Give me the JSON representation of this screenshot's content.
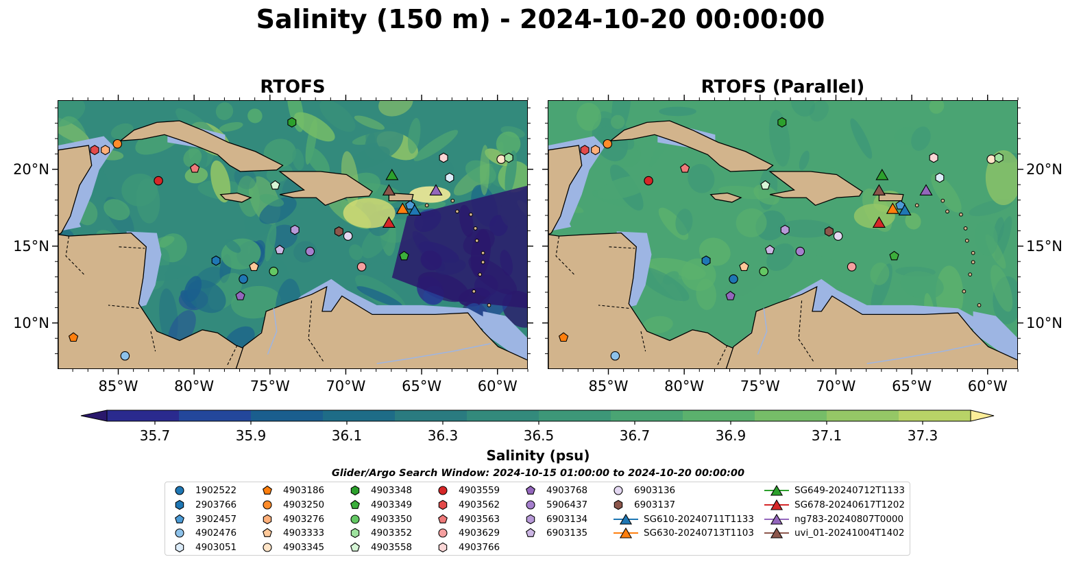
{
  "title": "Salinity (150 m) - 2024-10-20 00:00:00",
  "colors": {
    "land": "#d2b48c",
    "shelf": "#9db5e3",
    "deep": "#2b1f6e",
    "colormap": [
      "#2a186c",
      "#2a2a8e",
      "#23479b",
      "#1a5e8e",
      "#1e6c87",
      "#2a7b80",
      "#338a7c",
      "#3d9778",
      "#4aa473",
      "#5bb16d",
      "#76bd68",
      "#95c766",
      "#b8d367",
      "#dadf74",
      "#fdee99"
    ]
  },
  "chart_data": [
    {
      "type": "heatmap",
      "title": "RTOFS",
      "variable": "Salinity (psu)",
      "depth": "150 m",
      "lon_ticks": [
        "85°W",
        "80°W",
        "75°W",
        "70°W",
        "65°W",
        "60°W"
      ],
      "lat_ticks": [
        "20°N",
        "15°N",
        "10°N"
      ],
      "lon_range": [
        -89,
        -58
      ],
      "lat_range": [
        7,
        24.5
      ]
    },
    {
      "type": "heatmap",
      "title": "RTOFS (Parallel)",
      "variable": "Salinity (psu)",
      "depth": "150 m",
      "lon_ticks": [
        "85°W",
        "80°W",
        "75°W",
        "70°W",
        "65°W",
        "60°W"
      ],
      "lat_ticks": [
        "20°N",
        "15°N",
        "10°N"
      ],
      "lon_range": [
        -89,
        -58
      ],
      "lat_range": [
        7,
        24.5
      ]
    }
  ],
  "colorbar": {
    "label": "Salinity (psu)",
    "min": 35.6,
    "max": 37.4,
    "ticks": [
      "35.7",
      "35.9",
      "36.1",
      "36.3",
      "36.5",
      "36.7",
      "36.9",
      "37.1",
      "37.3"
    ]
  },
  "search_window": "Glider/Argo Search Window: 2024-10-15 01:00:00 to 2024-10-20 00:00:00",
  "observations": [
    {
      "name": "1902522",
      "marker": "circle",
      "color": "#1f77b4",
      "lon": -76.8,
      "lat": 12.9
    },
    {
      "name": "2903766",
      "marker": "hexagon",
      "color": "#1f77b4",
      "lon": -78.6,
      "lat": 14.1
    },
    {
      "name": "3902457",
      "marker": "pentagon",
      "color": "#4c9bd6",
      "lon": -65.8,
      "lat": 17.7
    },
    {
      "name": "4902476",
      "marker": "circle",
      "color": "#8ec2ea",
      "lon": -84.6,
      "lat": 7.9
    },
    {
      "name": "4903051",
      "marker": "hexagon",
      "color": "#dcecf9",
      "lon": -63.2,
      "lat": 19.5
    },
    {
      "name": "4903186",
      "marker": "pentagon",
      "color": "#ff7f0e",
      "lon": -88.0,
      "lat": 9.1
    },
    {
      "name": "4903250",
      "marker": "circle",
      "color": "#ff8c2a",
      "lon": -85.1,
      "lat": 21.7
    },
    {
      "name": "4903276",
      "marker": "hexagon",
      "color": "#ffb07a",
      "lon": -85.9,
      "lat": 21.3
    },
    {
      "name": "4903333",
      "marker": "pentagon",
      "color": "#ffc99a",
      "lon": -76.1,
      "lat": 13.7
    },
    {
      "name": "4903345",
      "marker": "circle",
      "color": "#ffe5c8",
      "lon": -59.8,
      "lat": 20.7
    },
    {
      "name": "4903348",
      "marker": "hexagon",
      "color": "#2ca02c",
      "lon": -73.6,
      "lat": 23.1
    },
    {
      "name": "4903349",
      "marker": "pentagon",
      "color": "#3cae3c",
      "lon": -66.2,
      "lat": 14.4
    },
    {
      "name": "4903350",
      "marker": "circle",
      "color": "#64c864",
      "lon": -74.8,
      "lat": 13.4
    },
    {
      "name": "4903352",
      "marker": "hexagon",
      "color": "#9ee29e",
      "lon": -59.3,
      "lat": 20.8
    },
    {
      "name": "4903558",
      "marker": "pentagon",
      "color": "#d6f5d6",
      "lon": -74.7,
      "lat": 19.0
    },
    {
      "name": "4903559",
      "marker": "circle",
      "color": "#d62728",
      "lon": -82.4,
      "lat": 19.3
    },
    {
      "name": "4903562",
      "marker": "hexagon",
      "color": "#e34a4a",
      "lon": -86.6,
      "lat": 21.3
    },
    {
      "name": "4903563",
      "marker": "pentagon",
      "color": "#ef7a7a",
      "lon": -80.0,
      "lat": 20.1
    },
    {
      "name": "4903629",
      "marker": "circle",
      "color": "#f59f9f",
      "lon": -69.0,
      "lat": 13.7
    },
    {
      "name": "4903766",
      "marker": "hexagon",
      "color": "#fad6d6",
      "lon": -63.6,
      "lat": 20.8
    },
    {
      "name": "4903768",
      "marker": "pentagon",
      "color": "#9467bd",
      "lon": -77.0,
      "lat": 11.8
    },
    {
      "name": "5906437",
      "marker": "circle",
      "color": "#a57fcd",
      "lon": -72.4,
      "lat": 14.7
    },
    {
      "name": "6903134",
      "marker": "hexagon",
      "color": "#b89ad8",
      "lon": -73.4,
      "lat": 16.1
    },
    {
      "name": "6903135",
      "marker": "pentagon",
      "color": "#ccb6e4",
      "lon": -74.4,
      "lat": 14.8
    },
    {
      "name": "6903136",
      "marker": "circle",
      "color": "#e4d8f2",
      "lon": -69.9,
      "lat": 15.7
    },
    {
      "name": "6903137",
      "marker": "hexagon",
      "color": "#8c564b",
      "lon": -70.5,
      "lat": 16.0
    },
    {
      "name": "SG610-20240711T1133",
      "marker": "triangle",
      "color": "#1f77b4",
      "lon": -65.5,
      "lat": 17.4
    },
    {
      "name": "SG630-20240713T1103",
      "marker": "triangle",
      "color": "#ff7f0e",
      "lon": -66.3,
      "lat": 17.5
    },
    {
      "name": "SG649-20240712T1133",
      "marker": "triangle",
      "color": "#2ca02c",
      "lon": -67.0,
      "lat": 19.7
    },
    {
      "name": "SG678-20240617T1202",
      "marker": "triangle",
      "color": "#d62728",
      "lon": -67.2,
      "lat": 16.6
    },
    {
      "name": "ng783-20240807T0000",
      "marker": "triangle",
      "color": "#9467bd",
      "lon": -64.1,
      "lat": 18.7
    },
    {
      "name": "uvi_01-20241004T1402",
      "marker": "triangle",
      "color": "#8c564b",
      "lon": -67.2,
      "lat": 18.7
    }
  ]
}
